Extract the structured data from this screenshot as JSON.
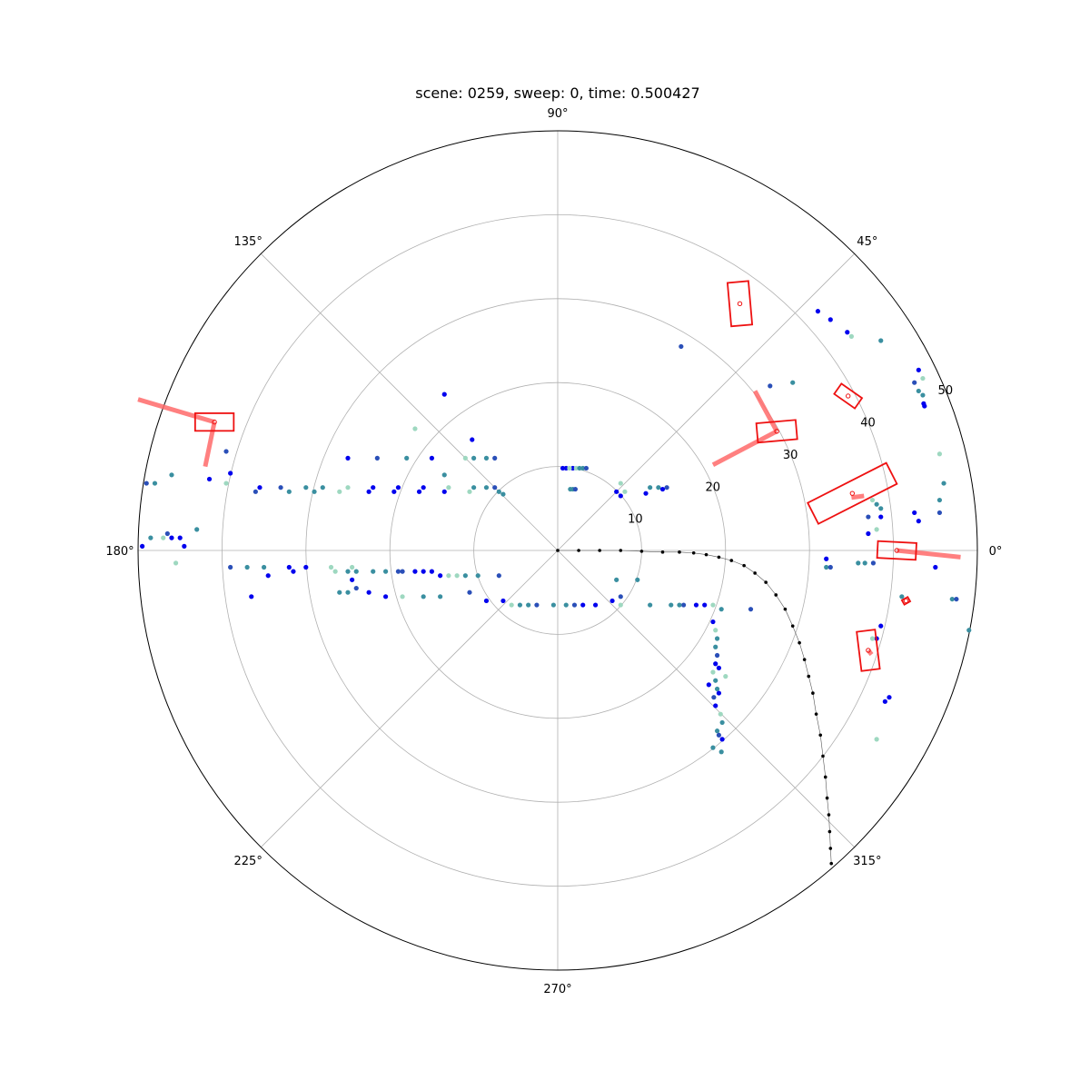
{
  "chart_data": {
    "type": "scatter",
    "projection": "polar",
    "title": "scene: 0259, sweep: 0, time: 0.500427",
    "grid": true,
    "theta_ticks_deg": [
      0,
      45,
      90,
      135,
      180,
      225,
      270,
      315
    ],
    "theta_tick_labels": [
      "0°",
      "45°",
      "90°",
      "135°",
      "180°",
      "225°",
      "270°",
      "315°"
    ],
    "r_ticks": [
      10,
      20,
      30,
      40,
      50
    ],
    "r_tick_labels": [
      "10",
      "20",
      "30",
      "40",
      "50"
    ],
    "r_label_angle_deg": 22.5,
    "r_max": 50,
    "colors": {
      "radar_points": [
        "#0000ee",
        "#2a4fb8",
        "#3a8fa0",
        "#9ed8c0"
      ],
      "boxes": "#ee1111",
      "velocity": "#ff6a6a",
      "trajectory": "#000000"
    },
    "series": [
      {
        "kind": "radar-points",
        "points_xy": [
          [
            1.8,
            9.8
          ],
          [
            2.2,
            9.8
          ],
          [
            2.6,
            9.8
          ],
          [
            3.0,
            9.8
          ],
          [
            3.4,
            9.8
          ],
          [
            0.6,
            9.8
          ],
          [
            1.0,
            9.8
          ],
          [
            1.4,
            9.8
          ],
          [
            1.5,
            7.3
          ],
          [
            1.8,
            7.3
          ],
          [
            2.1,
            7.3
          ],
          [
            -10.2,
            13.2
          ],
          [
            -13.5,
            18.6
          ],
          [
            -17.0,
            14.5
          ],
          [
            -13.5,
            9.0
          ],
          [
            -18.0,
            11.0
          ],
          [
            -21.5,
            11.0
          ],
          [
            -25.0,
            11.0
          ],
          [
            -15.0,
            11.0
          ],
          [
            -11.0,
            11.0
          ],
          [
            -10.0,
            11.0
          ],
          [
            -8.5,
            11.0
          ],
          [
            -7.5,
            11.0
          ],
          [
            -19.0,
            7.5
          ],
          [
            -22.0,
            7.5
          ],
          [
            -25.0,
            7.5
          ],
          [
            -28.0,
            7.5
          ],
          [
            -30.0,
            7.5
          ],
          [
            -33.0,
            7.5
          ],
          [
            -35.5,
            7.5
          ],
          [
            -16.0,
            7.5
          ],
          [
            -13.0,
            7.5
          ],
          [
            -10.0,
            7.5
          ],
          [
            -8.5,
            7.5
          ],
          [
            -7.5,
            7.5
          ],
          [
            -19.5,
            7.0
          ],
          [
            -22.5,
            7.0
          ],
          [
            -26.0,
            7.0
          ],
          [
            -29.0,
            7.0
          ],
          [
            -32.0,
            7.0
          ],
          [
            -36.0,
            7.0
          ],
          [
            -16.5,
            7.0
          ],
          [
            -13.5,
            7.0
          ],
          [
            -10.5,
            7.0
          ],
          [
            -7.0,
            7.0
          ],
          [
            -6.5,
            6.7
          ],
          [
            -39.5,
            11.8
          ],
          [
            -39.0,
            9.2
          ],
          [
            -41.5,
            8.5
          ],
          [
            -39.5,
            8.0
          ],
          [
            -46.0,
            9.0
          ],
          [
            -48.0,
            8.0
          ],
          [
            -49.0,
            8.0
          ],
          [
            -46.0,
            1.5
          ],
          [
            -45.0,
            1.5
          ],
          [
            -47.0,
            1.5
          ],
          [
            -48.5,
            1.5
          ],
          [
            -43.0,
            2.5
          ],
          [
            -46.5,
            2.0
          ],
          [
            -44.5,
            0.5
          ],
          [
            -49.5,
            0.5
          ],
          [
            -45.5,
            -1.5
          ],
          [
            -35.0,
            -2.0
          ],
          [
            -37.0,
            -2.0
          ],
          [
            -39.0,
            -2.0
          ],
          [
            -32.0,
            -2.0
          ],
          [
            -30.0,
            -2.0
          ],
          [
            -27.0,
            -2.0
          ],
          [
            -25.0,
            -2.5
          ],
          [
            -22.0,
            -2.5
          ],
          [
            -19.0,
            -2.5
          ],
          [
            -17.0,
            -2.5
          ],
          [
            -15.0,
            -2.5
          ],
          [
            -13.0,
            -3.0
          ],
          [
            -11.0,
            -3.0
          ],
          [
            -9.5,
            -3.0
          ],
          [
            -7.0,
            -3.0
          ],
          [
            -34.5,
            -3.0
          ],
          [
            -31.5,
            -2.5
          ],
          [
            -26.5,
            -2.5
          ],
          [
            -24.0,
            -2.5
          ],
          [
            -20.5,
            -2.5
          ],
          [
            -18.5,
            -2.5
          ],
          [
            -16.0,
            -2.5
          ],
          [
            -14.0,
            -3.0
          ],
          [
            -12.0,
            -3.0
          ],
          [
            -25.0,
            -5.0
          ],
          [
            -26.0,
            -5.0
          ],
          [
            -24.0,
            -4.5
          ],
          [
            -22.5,
            -5.0
          ],
          [
            -20.5,
            -5.5
          ],
          [
            -18.5,
            -5.5
          ],
          [
            -16.0,
            -5.5
          ],
          [
            -14.0,
            -5.5
          ],
          [
            -10.5,
            -5.0
          ],
          [
            -8.5,
            -6.0
          ],
          [
            -6.5,
            -6.0
          ],
          [
            -5.5,
            -6.5
          ],
          [
            -4.5,
            -6.5
          ],
          [
            -3.5,
            -6.5
          ],
          [
            -2.5,
            -6.5
          ],
          [
            -36.5,
            -5.5
          ],
          [
            -24.5,
            -3.5
          ],
          [
            -24.5,
            -2.0
          ],
          [
            -0.5,
            -6.5
          ],
          [
            1.0,
            -6.5
          ],
          [
            2.0,
            -6.5
          ],
          [
            3.0,
            -6.5
          ],
          [
            4.5,
            -6.5
          ],
          [
            7.5,
            -6.5
          ],
          [
            11.0,
            -6.5
          ],
          [
            13.5,
            -6.5
          ],
          [
            15.0,
            -6.5
          ],
          [
            16.5,
            -6.5
          ],
          [
            17.5,
            -6.5
          ],
          [
            18.5,
            -6.5
          ],
          [
            7.0,
            -3.5
          ],
          [
            9.5,
            -3.5
          ],
          [
            7.5,
            -5.5
          ],
          [
            6.5,
            -6.0
          ],
          [
            18.5,
            -8.5
          ],
          [
            18.8,
            -9.5
          ],
          [
            19.0,
            -10.5
          ],
          [
            18.8,
            -11.5
          ],
          [
            19.0,
            -12.5
          ],
          [
            18.8,
            -13.5
          ],
          [
            19.2,
            -14.0
          ],
          [
            18.5,
            -14.5
          ],
          [
            18.8,
            -15.5
          ],
          [
            19.0,
            -16.5
          ],
          [
            18.6,
            -17.5
          ],
          [
            19.2,
            -17.0
          ],
          [
            18.8,
            -18.5
          ],
          [
            19.4,
            -19.5
          ],
          [
            19.6,
            -20.5
          ],
          [
            19.0,
            -21.5
          ],
          [
            19.2,
            -22.0
          ],
          [
            19.6,
            -22.5
          ],
          [
            18.0,
            -16.0
          ],
          [
            20.0,
            -15.0
          ],
          [
            18.5,
            -23.5
          ],
          [
            19.5,
            -24.0
          ],
          [
            23.0,
            -7.0
          ],
          [
            7.0,
            7.0
          ],
          [
            7.5,
            6.5
          ],
          [
            8.0,
            7.0
          ],
          [
            11.0,
            7.5
          ],
          [
            12.0,
            7.5
          ],
          [
            13.0,
            7.5
          ],
          [
            10.5,
            6.8
          ],
          [
            12.5,
            7.3
          ],
          [
            7.5,
            8.0
          ],
          [
            14.5,
            -6.5
          ],
          [
            19.5,
            -7.0
          ],
          [
            14.7,
            24.3
          ],
          [
            32.5,
            27.5
          ],
          [
            34.5,
            26.0
          ],
          [
            35.0,
            25.5
          ],
          [
            38.5,
            25.0
          ],
          [
            28.0,
            20.0
          ],
          [
            25.3,
            19.6
          ],
          [
            31.0,
            28.5
          ],
          [
            43.0,
            21.5
          ],
          [
            43.5,
            20.5
          ],
          [
            43.0,
            19.0
          ],
          [
            43.5,
            18.5
          ],
          [
            42.5,
            20.0
          ],
          [
            43.6,
            17.5
          ],
          [
            43.7,
            17.2
          ],
          [
            45.5,
            11.5
          ],
          [
            46.0,
            8.0
          ],
          [
            45.5,
            6.0
          ],
          [
            45.5,
            4.5
          ],
          [
            42.5,
            4.5
          ],
          [
            43.0,
            3.5
          ],
          [
            37.5,
            6.0
          ],
          [
            38.0,
            5.5
          ],
          [
            38.5,
            5.0
          ],
          [
            37.0,
            4.0
          ],
          [
            38.5,
            4.0
          ],
          [
            37.0,
            2.0
          ],
          [
            38.0,
            2.5
          ],
          [
            35.8,
            -1.5
          ],
          [
            36.6,
            -1.5
          ],
          [
            37.6,
            -1.5
          ],
          [
            38.5,
            -9.0
          ],
          [
            38.0,
            -10.5
          ],
          [
            37.5,
            -10.5
          ],
          [
            41.0,
            -5.5
          ],
          [
            47.0,
            -5.8
          ],
          [
            47.5,
            -5.8
          ],
          [
            39.5,
            -17.5
          ],
          [
            39.0,
            -18.0
          ],
          [
            38.0,
            -22.5
          ],
          [
            49.0,
            -9.5
          ],
          [
            32.0,
            -2.0
          ],
          [
            32.5,
            -2.0
          ],
          [
            32.0,
            -1.0
          ],
          [
            45.0,
            -2.0
          ]
        ]
      },
      {
        "kind": "bounding-boxes",
        "boxes": [
          {
            "center": [
              21.7,
              29.4
            ],
            "length": 5.2,
            "width": 2.5,
            "heading_deg": 95
          },
          {
            "center": [
              26.1,
              14.2
            ],
            "length": 4.7,
            "width": 2.3,
            "heading_deg": 5
          },
          {
            "center": [
              34.6,
              18.4
            ],
            "length": 3.0,
            "width": 1.5,
            "heading_deg": -35
          },
          {
            "center": [
              35.1,
              6.8
            ],
            "length": 10.5,
            "width": 2.8,
            "heading_deg": 27
          },
          {
            "center": [
              40.4,
              0.0
            ],
            "length": 4.6,
            "width": 2.0,
            "heading_deg": -3
          },
          {
            "center": [
              41.5,
              -6.0
            ],
            "length": 0.8,
            "width": 0.6,
            "heading_deg": 30
          },
          {
            "center": [
              37.0,
              -11.9
            ],
            "length": 4.7,
            "width": 2.2,
            "heading_deg": 97
          },
          {
            "center": [
              -40.9,
              15.3
            ],
            "length": 4.6,
            "width": 2.1,
            "heading_deg": 0
          }
        ]
      },
      {
        "kind": "velocity-arrows",
        "segments": [
          {
            "from": [
              26.1,
              14.2
            ],
            "to": [
              23.5,
              19.0
            ]
          },
          {
            "from": [
              26.1,
              14.2
            ],
            "to": [
              18.5,
              10.2
            ]
          },
          {
            "from": [
              35.0,
              6.3
            ],
            "to": [
              36.5,
              6.5
            ]
          },
          {
            "from": [
              40.4,
              0.0
            ],
            "to": [
              48.0,
              -0.8
            ]
          },
          {
            "from": [
              37.0,
              -11.9
            ],
            "to": [
              37.4,
              -12.4
            ]
          },
          {
            "from": [
              -40.9,
              15.3
            ],
            "to": [
              -42.0,
              10.0
            ]
          },
          {
            "from": [
              -40.9,
              15.3
            ],
            "to": [
              -50.0,
              18.0
            ]
          }
        ]
      },
      {
        "kind": "ego-trajectory",
        "points_xy": [
          [
            0,
            0
          ],
          [
            2.5,
            0
          ],
          [
            5,
            0
          ],
          [
            7.5,
            0
          ],
          [
            10,
            -0.1
          ],
          [
            12.5,
            -0.2
          ],
          [
            14.5,
            -0.2
          ],
          [
            16.2,
            -0.3
          ],
          [
            17.7,
            -0.5
          ],
          [
            19.2,
            -0.8
          ],
          [
            20.7,
            -1.2
          ],
          [
            22.2,
            -1.8
          ],
          [
            23.5,
            -2.7
          ],
          [
            24.8,
            -3.8
          ],
          [
            26.0,
            -5.3
          ],
          [
            27.1,
            -7.0
          ],
          [
            28.0,
            -9.0
          ],
          [
            28.8,
            -11.0
          ],
          [
            29.4,
            -13.0
          ],
          [
            29.9,
            -15.0
          ],
          [
            30.4,
            -17.0
          ],
          [
            30.8,
            -19.5
          ],
          [
            31.3,
            -22.0
          ],
          [
            31.6,
            -24.5
          ],
          [
            31.9,
            -27.0
          ],
          [
            32.1,
            -29.5
          ],
          [
            32.3,
            -31.5
          ],
          [
            32.4,
            -33.5
          ],
          [
            32.5,
            -35.5
          ],
          [
            32.6,
            -37.3
          ]
        ]
      }
    ]
  }
}
